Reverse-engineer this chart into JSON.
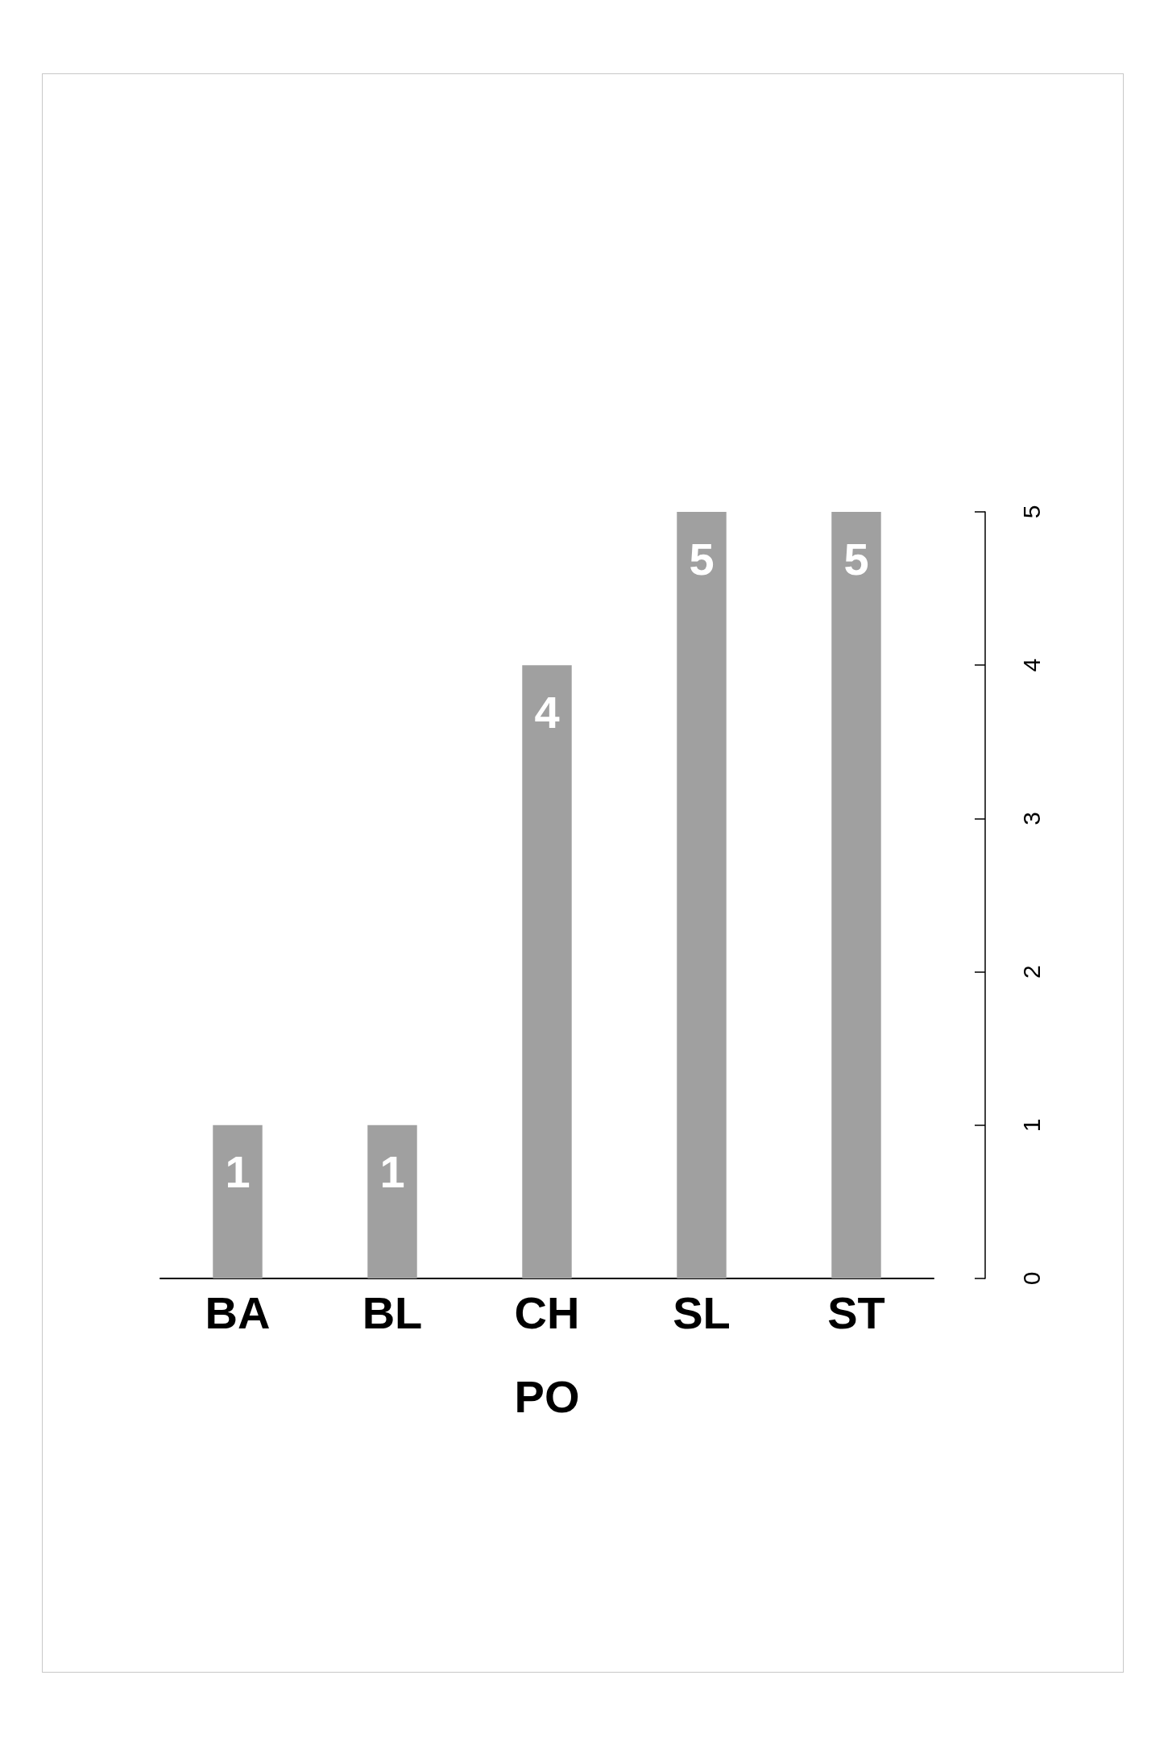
{
  "chart_data": {
    "type": "bar",
    "xlabel": "PO",
    "categories": [
      "BA",
      "BL",
      "CH",
      "SL",
      "ST"
    ],
    "values": [
      1,
      1,
      4,
      5,
      5
    ],
    "color": "#a0a0a0",
    "ylim": [
      0,
      5
    ],
    "yticks": [
      0,
      1,
      2,
      3,
      4,
      5
    ],
    "data_labels": true
  }
}
